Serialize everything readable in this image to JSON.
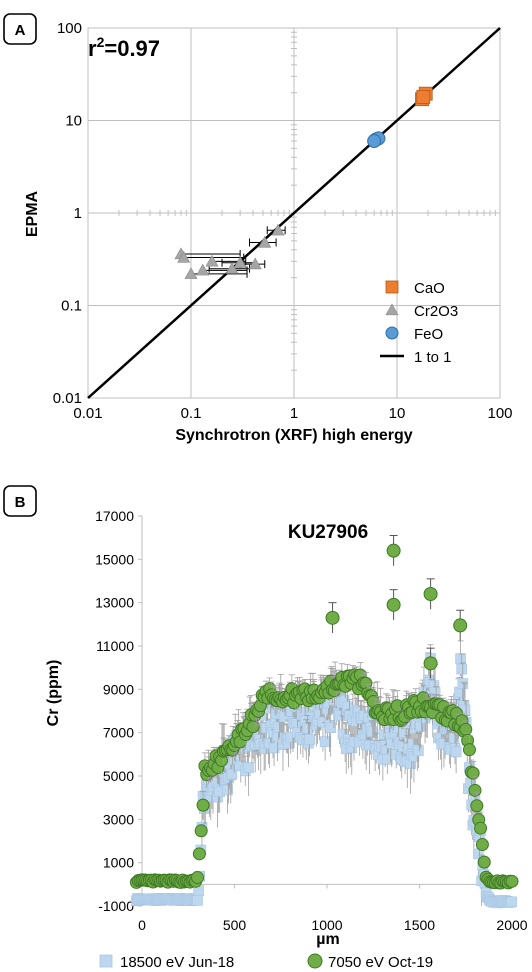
{
  "colors": {
    "cao": "#ED7D31",
    "cr2o3": "#A5A5A5",
    "feo": "#5B9BD5",
    "one_to_one": "#000000",
    "series_18500": "#BDD7EE",
    "series_7050": "#70AD47",
    "grid": "#BFBFBF",
    "error_bar": "#9E9E9E"
  },
  "chart_data": [
    {
      "panel_label": "A",
      "type": "scatter",
      "title": "",
      "annotation": {
        "base": "r",
        "sup": "2",
        "rest": "=0.97"
      },
      "xlabel": "Synchrotron (XRF) high energy",
      "ylabel": "EPMA",
      "xscale": "log",
      "yscale": "log",
      "xlim": [
        0.01,
        100
      ],
      "ylim": [
        0.01,
        100
      ],
      "xticks": [
        "0.01",
        "0.1",
        "1",
        "10",
        "100"
      ],
      "yticks": [
        "0.01",
        "0.1",
        "1",
        "10",
        "100"
      ],
      "legend_position": "bottom-right",
      "series": [
        {
          "name": "CaO",
          "marker": "square",
          "points": [
            {
              "x": 17.5,
              "y": 17.0
            },
            {
              "x": 19.0,
              "y": 19.5
            },
            {
              "x": 18.0,
              "y": 18.0
            }
          ]
        },
        {
          "name": "Cr2O3",
          "marker": "triangle",
          "points": [
            {
              "x": 0.08,
              "y": 0.36,
              "xerr_lo": 0.0,
              "xerr_hi": 0.22
            },
            {
              "x": 0.085,
              "y": 0.33,
              "xerr_lo": 0.0,
              "xerr_hi": 0.24
            },
            {
              "x": 0.1,
              "y": 0.22,
              "xerr_lo": 0.0,
              "xerr_hi": 0.25
            },
            {
              "x": 0.13,
              "y": 0.24,
              "xerr_lo": 0.0,
              "xerr_hi": 0.22
            },
            {
              "x": 0.16,
              "y": 0.3,
              "xerr_lo": 0.0,
              "xerr_hi": 0.18
            },
            {
              "x": 0.25,
              "y": 0.25,
              "xerr_lo": 0.1,
              "xerr_hi": 0.12
            },
            {
              "x": 0.3,
              "y": 0.29,
              "xerr_lo": 0.1,
              "xerr_hi": 0.12
            },
            {
              "x": 0.42,
              "y": 0.28,
              "xerr_lo": 0.12,
              "xerr_hi": 0.1
            },
            {
              "x": 0.52,
              "y": 0.48,
              "xerr_lo": 0.15,
              "xerr_hi": 0.15
            },
            {
              "x": 0.7,
              "y": 0.65,
              "xerr_lo": 0.15,
              "xerr_hi": 0.12
            }
          ]
        },
        {
          "name": "FeO",
          "marker": "circle",
          "points": [
            {
              "x": 6.2,
              "y": 6.2
            },
            {
              "x": 6.6,
              "y": 6.4
            },
            {
              "x": 6.0,
              "y": 6.0
            }
          ]
        },
        {
          "name": "1 to 1",
          "marker": "line",
          "points": [
            {
              "x": 0.01,
              "y": 0.01
            },
            {
              "x": 100,
              "y": 100
            }
          ]
        }
      ]
    },
    {
      "panel_label": "B",
      "type": "scatter",
      "title": "KU27906",
      "xlabel": "µm",
      "ylabel": "Cr (ppm)",
      "xlim": [
        0,
        2000
      ],
      "ylim": [
        -1000,
        17000
      ],
      "xticks": [
        "0",
        "500",
        "1000",
        "1500",
        "2000"
      ],
      "yticks": [
        "-1000",
        "1000",
        "3000",
        "5000",
        "7000",
        "9000",
        "11000",
        "13000",
        "15000",
        "17000"
      ],
      "legend_position": "bottom",
      "series": [
        {
          "name": "18500 eV Jun-18",
          "marker": "square",
          "profile": [
            [
              -30,
              -700
            ],
            [
              300,
              -700
            ],
            [
              310,
              0
            ],
            [
              330,
              4000
            ],
            [
              380,
              4700
            ],
            [
              500,
              5800
            ],
            [
              600,
              6600
            ],
            [
              700,
              7300
            ],
            [
              800,
              7600
            ],
            [
              900,
              7600
            ],
            [
              1000,
              7500
            ],
            [
              1050,
              9000
            ],
            [
              1100,
              7300
            ],
            [
              1200,
              7500
            ],
            [
              1300,
              6800
            ],
            [
              1400,
              6700
            ],
            [
              1500,
              6600
            ],
            [
              1560,
              9700
            ],
            [
              1600,
              7000
            ],
            [
              1700,
              7100
            ],
            [
              1730,
              10600
            ],
            [
              1760,
              5500
            ],
            [
              1800,
              3000
            ],
            [
              1840,
              1000
            ],
            [
              1860,
              -400
            ],
            [
              1880,
              -800
            ],
            [
              2000,
              -800
            ]
          ],
          "noise": 1100,
          "step": 6,
          "err": 1000
        },
        {
          "name": "7050 eV Oct-19",
          "marker": "circle",
          "profile": [
            [
              -30,
              150
            ],
            [
              290,
              150
            ],
            [
              300,
              300
            ],
            [
              320,
              2500
            ],
            [
              340,
              5200
            ],
            [
              400,
              5600
            ],
            [
              500,
              6400
            ],
            [
              600,
              7600
            ],
            [
              650,
              8400
            ],
            [
              700,
              8800
            ],
            [
              800,
              8700
            ],
            [
              900,
              8800
            ],
            [
              1000,
              9000
            ],
            [
              1100,
              9400
            ],
            [
              1200,
              9300
            ],
            [
              1280,
              7900
            ],
            [
              1400,
              7900
            ],
            [
              1500,
              8300
            ],
            [
              1600,
              8100
            ],
            [
              1700,
              7600
            ],
            [
              1750,
              7100
            ],
            [
              1780,
              5500
            ],
            [
              1810,
              3900
            ],
            [
              1840,
              1800
            ],
            [
              1860,
              300
            ],
            [
              1880,
              100
            ],
            [
              2000,
              100
            ]
          ],
          "noise": 350,
          "step": 10,
          "err": 500
        },
        {
          "name": "",
          "marker": "circle",
          "hidden_in_legend": true,
          "points": [
            [
              1030,
              12300
            ],
            [
              1360,
              15400
            ],
            [
              1360,
              12900
            ],
            [
              1560,
              13400
            ],
            [
              1560,
              10200
            ],
            [
              1720,
              11950
            ]
          ],
          "err": 700
        }
      ]
    }
  ]
}
